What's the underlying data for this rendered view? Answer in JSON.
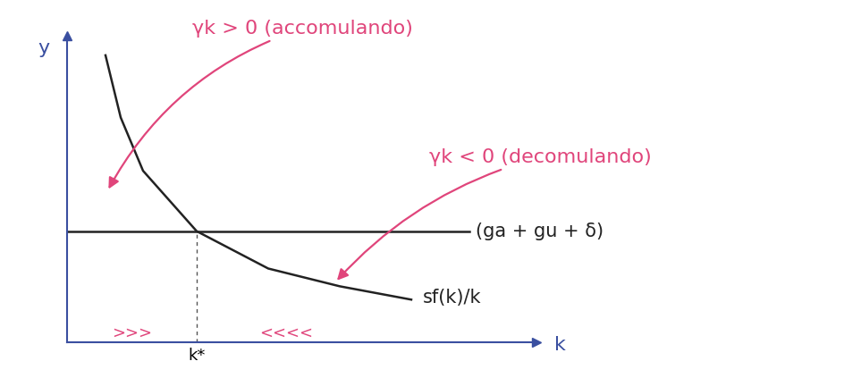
{
  "chart_data": {
    "type": "line",
    "xlabel": "k",
    "ylabel": "y",
    "xlim": [
      0,
      10.5
    ],
    "ylim": [
      0,
      6.9
    ],
    "xticks": [
      {
        "value": 2.9,
        "label": "k*"
      }
    ],
    "yticks": [],
    "grid": false,
    "series": [
      {
        "name": "sf(k)/k",
        "color": "#222222",
        "line_style": "solid",
        "x": [
          0.86,
          1.2,
          1.7,
          2.9,
          4.5,
          6.1,
          7.7
        ],
        "values": [
          6.46,
          5.06,
          3.86,
          2.5,
          1.66,
          1.26,
          0.96
        ]
      },
      {
        "name": "(ga + gu + δ)",
        "color": "#222222",
        "line_style": "solid",
        "x": [
          0,
          9.0
        ],
        "values": [
          2.5,
          2.5
        ]
      }
    ],
    "annotations": [
      {
        "text": "γk > 0 (accomulando)",
        "color": "#e0457b"
      },
      {
        "text": "γk < 0 (decomulando)",
        "color": "#e0457b"
      },
      {
        "text": ">>>",
        "color": "#e0457b"
      },
      {
        "text": "<<<<",
        "color": "#e0457b"
      }
    ]
  }
}
